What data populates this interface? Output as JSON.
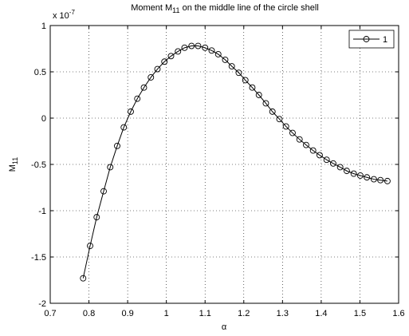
{
  "chart_data": {
    "type": "line",
    "title": {
      "text": "Moment M",
      "sub": "11",
      "rest": " on the middle line of the circle shell"
    },
    "multiplier": {
      "text": "x 10",
      "sup": "-7"
    },
    "x_label": "α",
    "y_label": {
      "text": "M",
      "sub": "11"
    },
    "x": [
      0.785,
      0.803,
      0.82,
      0.838,
      0.855,
      0.873,
      0.89,
      0.908,
      0.925,
      0.942,
      0.96,
      0.977,
      0.995,
      1.012,
      1.03,
      1.047,
      1.065,
      1.082,
      1.1,
      1.117,
      1.134,
      1.152,
      1.169,
      1.187,
      1.204,
      1.222,
      1.239,
      1.257,
      1.274,
      1.292,
      1.309,
      1.326,
      1.344,
      1.361,
      1.379,
      1.396,
      1.414,
      1.431,
      1.449,
      1.466,
      1.484,
      1.501,
      1.518,
      1.536,
      1.553,
      1.571
    ],
    "series": [
      {
        "name": "1",
        "color": "#000000",
        "values": [
          -1.73,
          -1.38,
          -1.07,
          -0.79,
          -0.53,
          -0.3,
          -0.1,
          0.07,
          0.21,
          0.33,
          0.44,
          0.53,
          0.61,
          0.67,
          0.72,
          0.76,
          0.78,
          0.78,
          0.76,
          0.73,
          0.69,
          0.63,
          0.56,
          0.49,
          0.41,
          0.33,
          0.25,
          0.16,
          0.07,
          -0.01,
          -0.09,
          -0.16,
          -0.23,
          -0.29,
          -0.35,
          -0.4,
          -0.45,
          -0.49,
          -0.53,
          -0.57,
          -0.6,
          -0.62,
          -0.64,
          -0.66,
          -0.67,
          -0.68
        ]
      }
    ],
    "xlim": [
      0.7,
      1.6
    ],
    "xticks": [
      0.7,
      0.8,
      0.9,
      1,
      1.1,
      1.2,
      1.3,
      1.4,
      1.5,
      1.6
    ],
    "ylim": [
      -2,
      1
    ],
    "yticks": [
      -2,
      -1.5,
      -1,
      -0.5,
      0,
      0.5,
      1
    ],
    "grid": true,
    "legend": "top-right",
    "marker": "circle"
  }
}
